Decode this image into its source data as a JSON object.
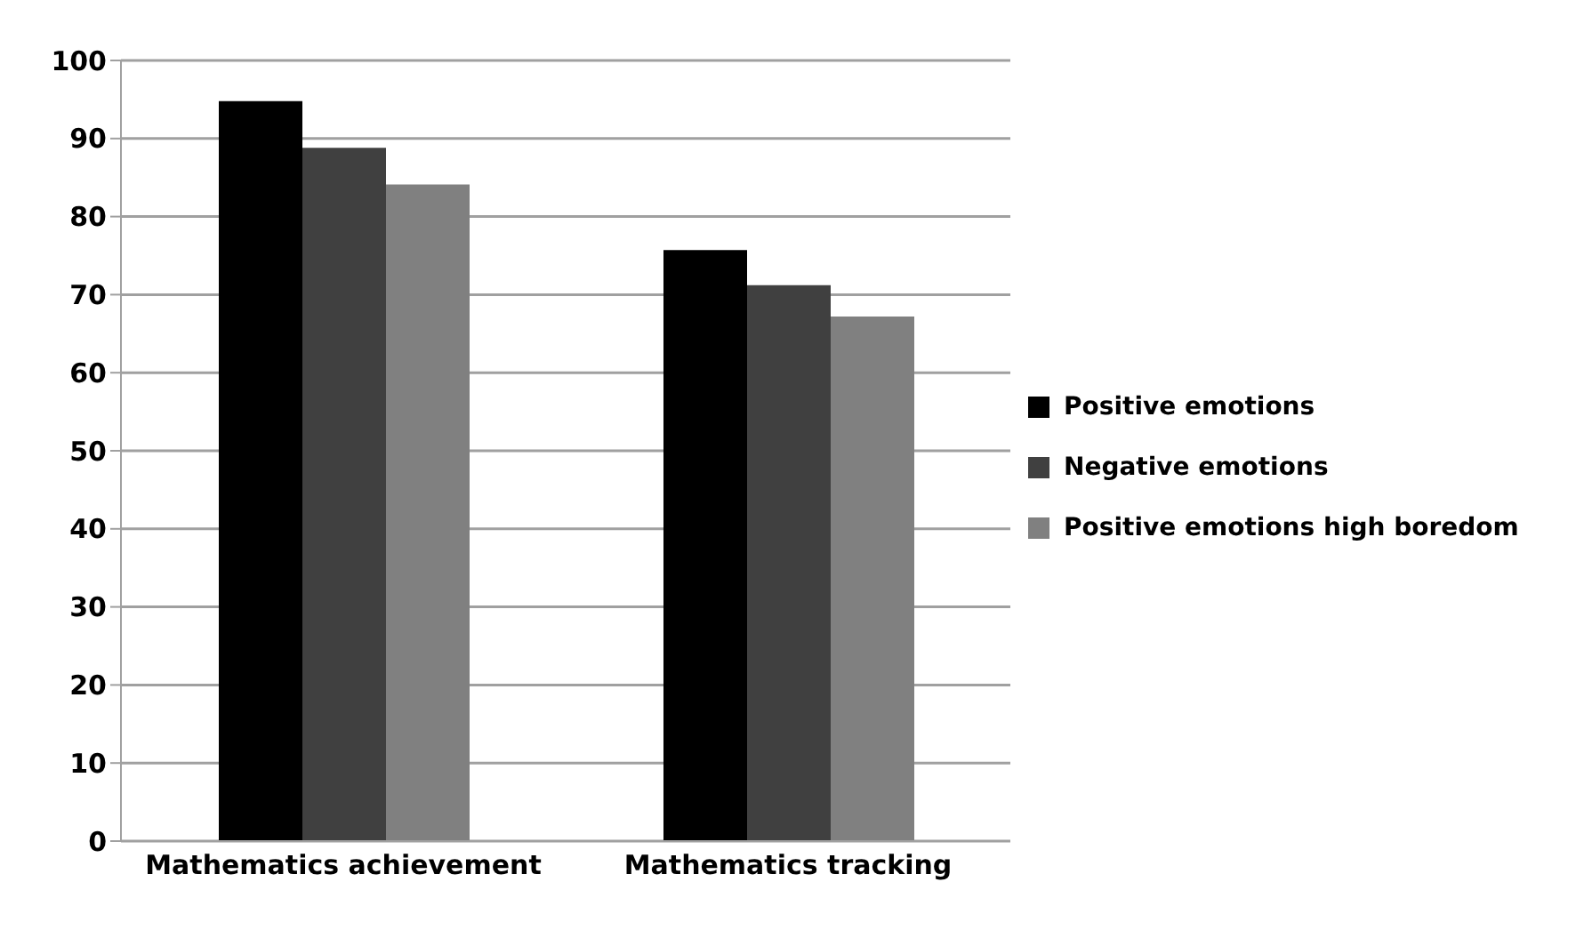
{
  "chart_data": {
    "type": "bar",
    "categories": [
      "Mathematics achievement",
      "Mathematics tracking"
    ],
    "series": [
      {
        "name": "Positive emotions",
        "color": "#000000",
        "values": [
          94.8,
          75.7
        ]
      },
      {
        "name": "Negative emotions",
        "color": "#404040",
        "values": [
          88.8,
          71.2
        ]
      },
      {
        "name": "Positive emotions high boredom",
        "color": "#808080",
        "values": [
          84.1,
          67.2
        ]
      }
    ],
    "ylim": [
      0,
      100
    ],
    "yticks": [
      0,
      10,
      20,
      30,
      40,
      50,
      60,
      70,
      80,
      90,
      100
    ],
    "grid": "y",
    "legend": "right"
  }
}
